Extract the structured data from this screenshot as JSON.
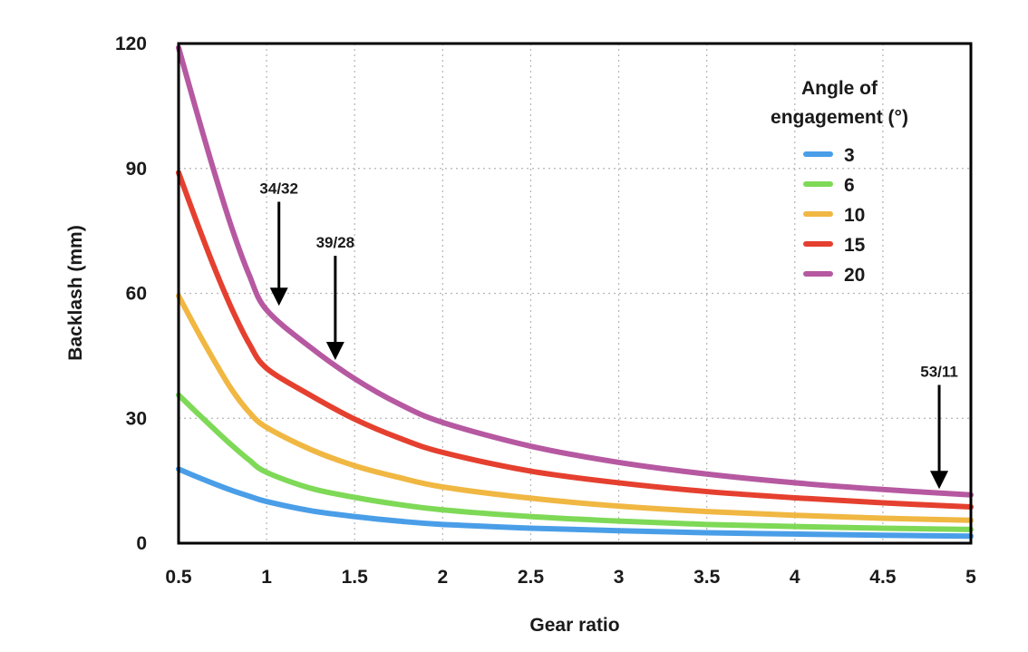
{
  "chart_data": {
    "type": "line",
    "title": "",
    "xlabel": "Gear ratio",
    "ylabel": "Backlash (mm)",
    "xlim": [
      0.5,
      5
    ],
    "ylim": [
      0,
      120
    ],
    "x_ticks": [
      "0.5",
      "1",
      "1.5",
      "2",
      "2.5",
      "3",
      "3.5",
      "4",
      "4.5",
      "5"
    ],
    "y_ticks": [
      "0",
      "30",
      "60",
      "90",
      "120"
    ],
    "grid": true,
    "x": [
      0.5,
      0.6,
      0.7,
      0.8,
      0.9,
      1.0,
      1.25,
      1.5,
      1.75,
      2.0,
      2.5,
      3.0,
      3.5,
      4.0,
      4.5,
      5.0
    ],
    "series": [
      {
        "name": "3",
        "color": "#4a9ee8",
        "values": [
          17.8,
          16.0,
          14.3,
          12.7,
          11.3,
          10.0,
          7.8,
          6.4,
          5.3,
          4.5,
          3.6,
          3.0,
          2.5,
          2.2,
          1.9,
          1.7
        ]
      },
      {
        "name": "6",
        "color": "#7ed957",
        "values": [
          35.6,
          31.5,
          27.5,
          23.6,
          20.0,
          17.0,
          13.2,
          11.0,
          9.3,
          8.0,
          6.4,
          5.3,
          4.5,
          4.0,
          3.6,
          3.3
        ]
      },
      {
        "name": "10",
        "color": "#f0b742",
        "values": [
          59.4,
          51.5,
          44.0,
          37.0,
          31.5,
          27.8,
          22.5,
          18.6,
          15.8,
          13.5,
          10.8,
          8.9,
          7.6,
          6.7,
          6.0,
          5.5
        ]
      },
      {
        "name": "15",
        "color": "#e5402f",
        "values": [
          89.0,
          77.5,
          66.5,
          56.5,
          48.0,
          42.0,
          35.5,
          29.8,
          25.3,
          21.8,
          17.3,
          14.5,
          12.4,
          10.9,
          9.7,
          8.7
        ]
      },
      {
        "name": "20",
        "color": "#b659a1",
        "values": [
          119.0,
          104.0,
          89.5,
          76.0,
          64.5,
          56.0,
          47.0,
          39.5,
          33.5,
          29.0,
          23.3,
          19.4,
          16.6,
          14.5,
          12.9,
          11.6
        ]
      }
    ],
    "legend": {
      "title_line1": "Angle of",
      "title_line2": "engagement (°)",
      "position": "top-right"
    },
    "annotations": [
      {
        "label": "34/32",
        "x": 1.07,
        "y_from": 82,
        "y_to": 57
      },
      {
        "label": "39/28",
        "x": 1.39,
        "y_from": 69,
        "y_to": 44
      },
      {
        "label": "53/11",
        "x": 4.82,
        "y_from": 38,
        "y_to": 13
      }
    ]
  }
}
